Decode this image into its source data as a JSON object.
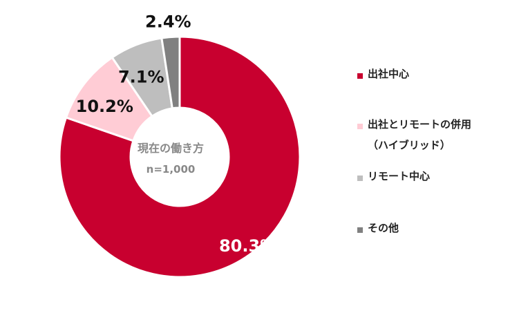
{
  "chart_data": {
    "type": "pie",
    "donut": true,
    "center_title": "現在の働き方",
    "center_subtitle": "n=1,000",
    "slices": [
      {
        "label": "出社中心",
        "value": 80.3,
        "value_label": "80.3%",
        "color": "#C8002F",
        "label_color": "#FFFFFF"
      },
      {
        "label": "出社とリモートの併用\n（ハイブリッド）",
        "value": 10.2,
        "value_label": "10.2%",
        "color": "#FFCCD5",
        "label_color": "#111111"
      },
      {
        "label": "リモート中心",
        "value": 7.1,
        "value_label": "7.1%",
        "color": "#BEBEBE",
        "label_color": "#111111"
      },
      {
        "label": "その他",
        "value": 2.4,
        "value_label": "2.4%",
        "color": "#808080",
        "label_color": "#111111"
      }
    ],
    "legend_position": "right"
  }
}
